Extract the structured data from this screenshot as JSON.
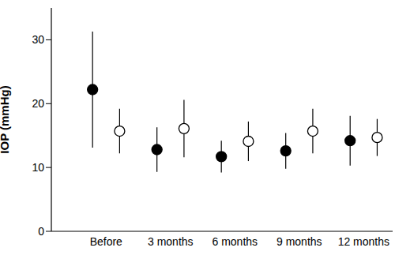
{
  "chart_data": {
    "type": "scatter",
    "y_label": "IOP (mmHg)",
    "categories": [
      "Before",
      "3 months",
      "6 months",
      "9 months",
      "12 months"
    ],
    "ylim": [
      0,
      35
    ],
    "yticks": [
      0,
      10,
      20,
      30
    ],
    "series": [
      {
        "color": "#000000",
        "marker": "filled_circle",
        "values": [
          22.2,
          12.8,
          11.7,
          12.6,
          14.2
        ],
        "errors": [
          9.1,
          3.5,
          2.5,
          2.8,
          3.9
        ]
      },
      {
        "color": "#000000",
        "marker": "open_circle",
        "values": [
          15.7,
          16.1,
          14.1,
          15.7,
          14.7
        ],
        "errors": [
          3.5,
          4.5,
          3.1,
          3.5,
          2.9
        ]
      }
    ]
  }
}
